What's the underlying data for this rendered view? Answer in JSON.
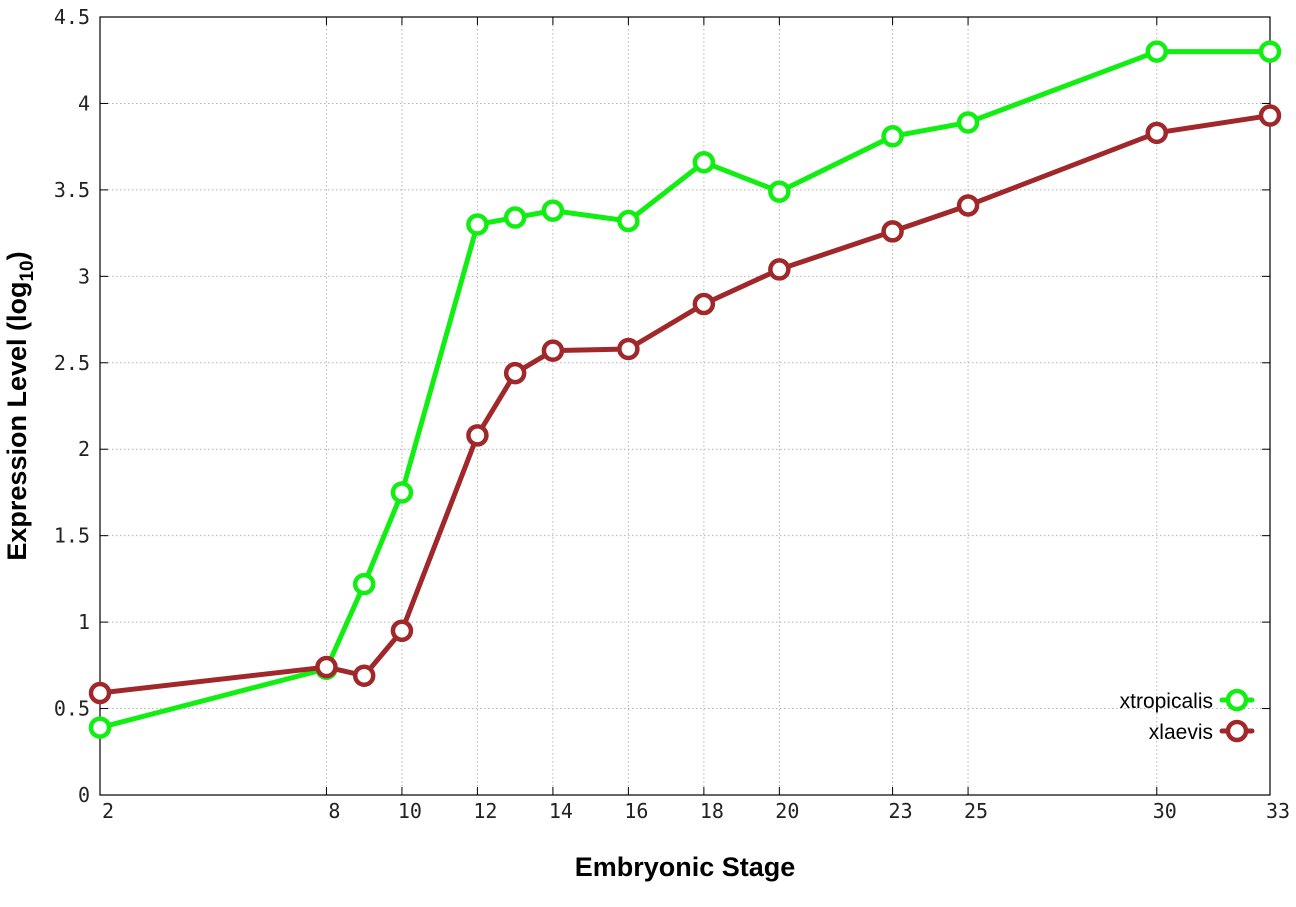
{
  "chart_data": {
    "type": "line",
    "xlabel": "Embryonic Stage",
    "ylabel": "Expression Level (log",
    "ylabel_subscript": "10",
    "ylabel_suffix": ")",
    "x_ticks": [
      2,
      8,
      10,
      12,
      14,
      16,
      18,
      20,
      23,
      25,
      30,
      33
    ],
    "y_ticks": [
      0,
      0.5,
      1,
      1.5,
      2,
      2.5,
      3,
      3.5,
      4,
      4.5
    ],
    "y_tick_labels": [
      "0",
      "0.5",
      "1",
      "1.5",
      "2",
      "2.5",
      "3",
      "3.5",
      "4",
      "4.5"
    ],
    "xlim": [
      2,
      33
    ],
    "ylim": [
      0,
      4.5
    ],
    "grid": true,
    "legend_position": "bottom-right",
    "series": [
      {
        "name": "xtropicalis",
        "color": "#11ee11",
        "x": [
          2,
          8,
          9,
          10,
          12,
          13,
          14,
          16,
          18,
          20,
          23,
          25,
          30,
          33
        ],
        "y": [
          0.39,
          0.73,
          1.22,
          1.75,
          3.3,
          3.34,
          3.38,
          3.32,
          3.66,
          3.49,
          3.81,
          3.89,
          4.3,
          4.3
        ]
      },
      {
        "name": "xlaevis",
        "color": "#a0282a",
        "x": [
          2,
          8,
          9,
          10,
          12,
          13,
          14,
          16,
          18,
          20,
          23,
          25,
          30,
          33
        ],
        "y": [
          0.59,
          0.74,
          0.69,
          0.95,
          2.08,
          2.44,
          2.57,
          2.58,
          2.84,
          3.04,
          3.26,
          3.41,
          3.83,
          3.93
        ]
      }
    ]
  }
}
